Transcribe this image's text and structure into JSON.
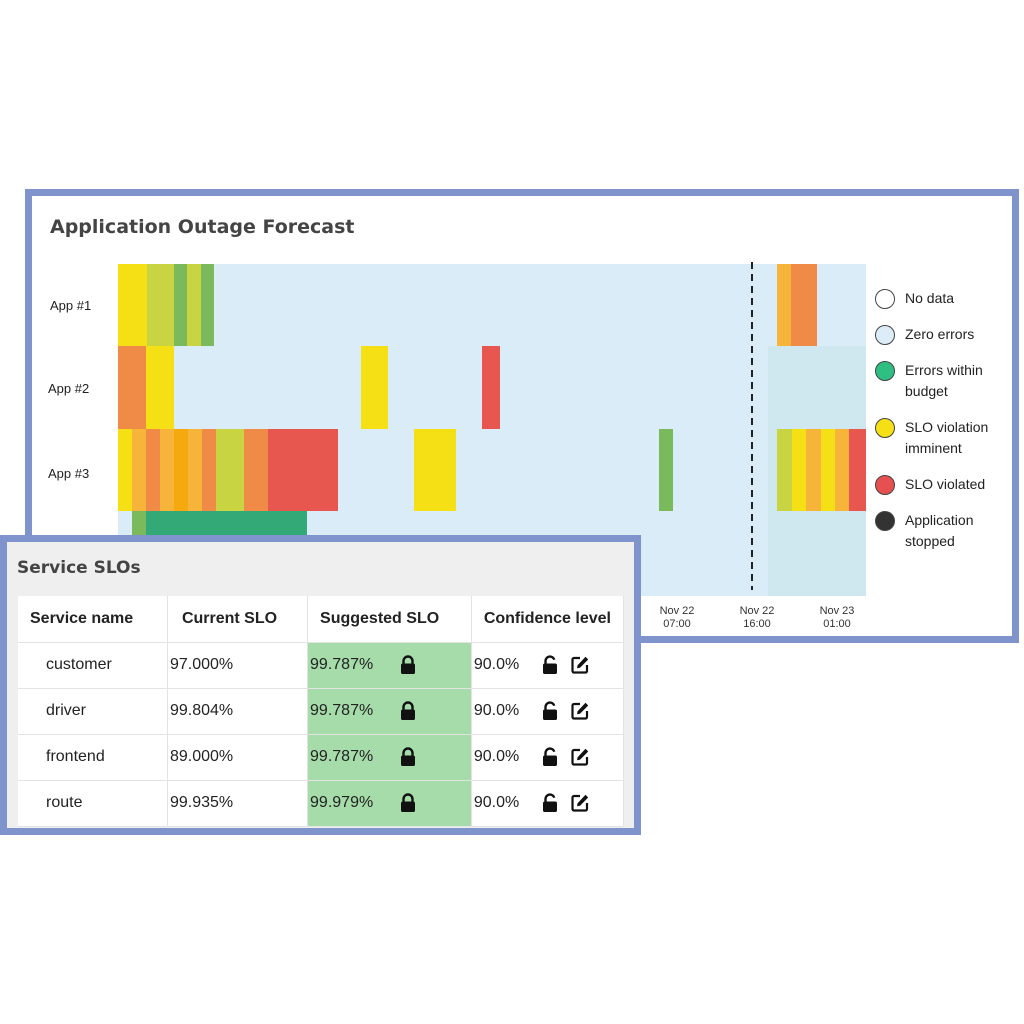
{
  "forecast": {
    "title": "Application Outage Forecast",
    "rows": [
      "App #1",
      "App #2",
      "App #3"
    ],
    "ticks": [
      {
        "top": "Nov 22",
        "bottom": "07:00"
      },
      {
        "top": "Nov 22",
        "bottom": "16:00"
      },
      {
        "top": "Nov 23",
        "bottom": "01:00"
      }
    ],
    "legend": [
      {
        "label": "No data",
        "color": "#ffffff"
      },
      {
        "label": "Zero errors",
        "color": "#dcedf8"
      },
      {
        "label": "Errors within budget",
        "color": "#2fbf83"
      },
      {
        "label": "SLO violation imminent",
        "color": "#f5e015"
      },
      {
        "label": "SLO violated",
        "color": "#e65050"
      },
      {
        "label": "Application stopped",
        "color": "#333333"
      }
    ],
    "colors": {
      "zero": "#d9ecf7",
      "zero_after": "#cfe8ef",
      "yellow": "#f5e015",
      "lime": "#c9d443",
      "green": "#7aba5c",
      "orange": "#f08a47",
      "amber": "#f6b43b",
      "gold": "#f5a90f",
      "red": "#e85650",
      "teal": "#33a977"
    }
  },
  "slos": {
    "title": "Service SLOs",
    "headers": {
      "service": "Service name",
      "current": "Current SLO",
      "suggested": "Suggested SLO",
      "confidence": "Confidence level"
    },
    "rows": [
      {
        "service": "customer",
        "current": "97.000%",
        "suggested": "99.787%",
        "confidence": "90.0%"
      },
      {
        "service": "driver",
        "current": "99.804%",
        "suggested": "99.787%",
        "confidence": "90.0%"
      },
      {
        "service": "frontend",
        "current": "89.000%",
        "suggested": "99.787%",
        "confidence": "90.0%"
      },
      {
        "service": "route",
        "current": "99.935%",
        "suggested": "99.979%",
        "confidence": "90.0%"
      }
    ],
    "icons": {
      "suggested": "lock-icon",
      "confidence_lock": "unlock-icon",
      "confidence_edit": "edit-icon"
    }
  }
}
